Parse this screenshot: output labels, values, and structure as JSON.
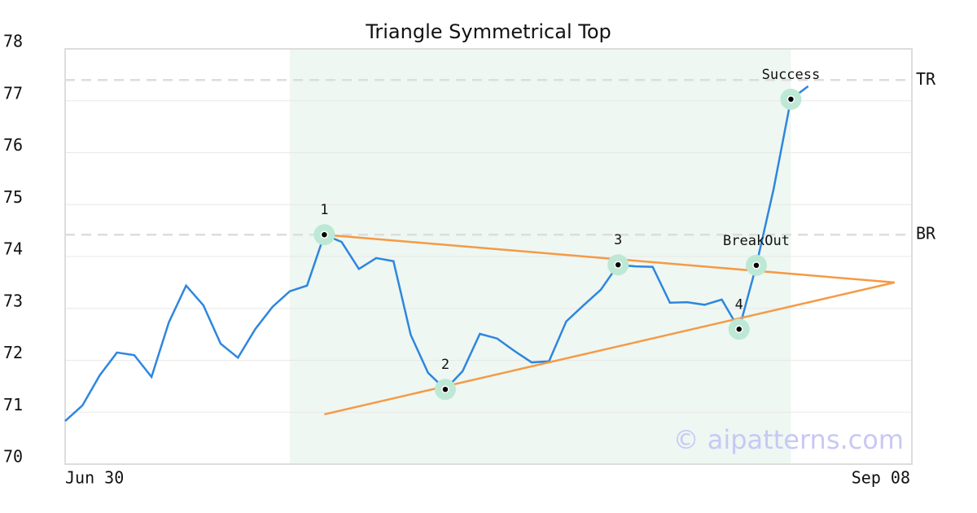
{
  "chart_data": {
    "type": "line",
    "title": "Triangle Symmetrical Top",
    "x": [
      0,
      1,
      2,
      3,
      4,
      5,
      6,
      7,
      8,
      9,
      10,
      11,
      12,
      13,
      14,
      15,
      16,
      17,
      18,
      19,
      20,
      21,
      22,
      23,
      24,
      25,
      26,
      27,
      28,
      29,
      30,
      31,
      32,
      33,
      34,
      35,
      36,
      37,
      38,
      39,
      40,
      41,
      42,
      43
    ],
    "series": [
      {
        "color": "#2e86de",
        "values": [
          70.83,
          71.13,
          71.71,
          72.15,
          72.1,
          71.68,
          72.73,
          73.44,
          73.06,
          72.32,
          72.05,
          72.6,
          73.03,
          73.33,
          73.44,
          74.42,
          74.28,
          73.76,
          73.97,
          73.91,
          72.49,
          71.76,
          71.44,
          71.79,
          72.51,
          72.42,
          72.18,
          71.96,
          71.98,
          72.75,
          73.06,
          73.36,
          73.84,
          73.81,
          73.8,
          73.11,
          73.12,
          73.07,
          73.17,
          72.6,
          73.83,
          75.3,
          77.03,
          77.28
        ]
      }
    ],
    "xlim": [
      0,
      49
    ],
    "xticks": [
      {
        "value": 0,
        "label": "Jun 30"
      },
      {
        "value": 49,
        "label": "Sep 08"
      }
    ],
    "ylim": [
      70,
      78
    ],
    "yticks": [
      70,
      71,
      72,
      73,
      74,
      75,
      76,
      77,
      78
    ],
    "grid": true,
    "highlight": {
      "x": [
        13,
        42
      ],
      "color": "#eef7f2"
    },
    "hlines": [
      {
        "label": "TR",
        "value": 77.4
      },
      {
        "label": "BR",
        "value": 74.42
      }
    ],
    "trendlines": [
      {
        "color": "#f59a45",
        "x": [
          15,
          48
        ],
        "values": [
          74.42,
          73.5
        ]
      },
      {
        "color": "#f59a45",
        "x": [
          15,
          48
        ],
        "values": [
          70.96,
          73.5
        ]
      }
    ],
    "annotations": [
      {
        "label": "1",
        "x": 15,
        "y": 74.42
      },
      {
        "label": "2",
        "x": 22,
        "y": 71.44
      },
      {
        "label": "3",
        "x": 32,
        "y": 73.84
      },
      {
        "label": "4",
        "x": 39,
        "y": 72.6
      },
      {
        "label": "BreakOut",
        "x": 40,
        "y": 73.83
      },
      {
        "label": "Success",
        "x": 42,
        "y": 77.03
      }
    ],
    "watermark": "© aipatterns.com"
  }
}
